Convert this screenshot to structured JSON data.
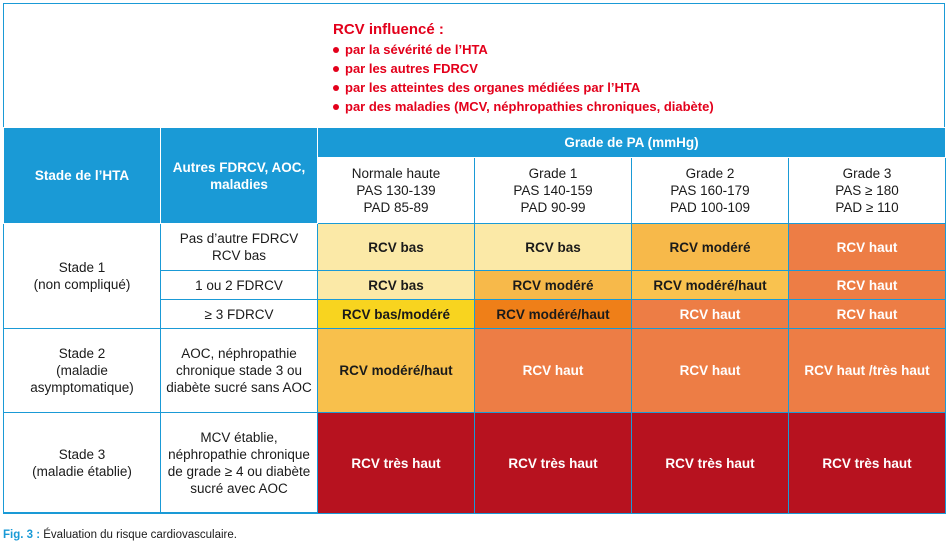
{
  "intro": {
    "title": "RCV influencé :",
    "bullets": [
      "par la sévérité de l’HTA",
      "par les autres FDRCV",
      "par les atteintes des organes médiées par l’HTA",
      "par des maladies (MCV, néphropathies chroniques, diabète)"
    ]
  },
  "table": {
    "header_stade": "Stade de l’HTA",
    "header_autres": "Autres FDRCV, AOC, maladies",
    "header_grade": "Grade de PA (mmHg)",
    "grades": [
      {
        "name": "Normale haute",
        "pas": "PAS 130-139",
        "pad": "PAD 85-89"
      },
      {
        "name": "Grade 1",
        "pas": "PAS 140-159",
        "pad": "PAD 90-99"
      },
      {
        "name": "Grade 2",
        "pas": "PAS 160-179",
        "pad": "PAD 100-109"
      },
      {
        "name": "Grade 3",
        "pas": "PAS ≥ 180",
        "pad": "PAD ≥ 110"
      }
    ],
    "stade1": {
      "label": "Stade 1",
      "sub": "(non compliqué)"
    },
    "stade2": {
      "label": "Stade 2",
      "sub": "(maladie asymptomatique)"
    },
    "stade3": {
      "label": "Stade 3",
      "sub": "(maladie établie)"
    },
    "rows": [
      {
        "factors": "Pas d’autre FDRCV RCV bas",
        "cells": [
          {
            "text": "RCV bas",
            "color": "#fbe9a7"
          },
          {
            "text": "RCV bas",
            "color": "#fbe9a7"
          },
          {
            "text": "RCV modéré",
            "color": "#f7b94a"
          },
          {
            "text": "RCV haut",
            "color": "#ed7d45",
            "white": true
          }
        ]
      },
      {
        "factors": "1 ou 2 FDRCV",
        "cells": [
          {
            "text": "RCV bas",
            "color": "#fbe9a7"
          },
          {
            "text": "RCV modéré",
            "color": "#f7b94a"
          },
          {
            "text": "RCV modéré/haut",
            "color": "#f9c24f"
          },
          {
            "text": "RCV haut",
            "color": "#ed7d45",
            "white": true
          }
        ]
      },
      {
        "factors": "≥ 3 FDRCV",
        "cells": [
          {
            "text": "RCV bas/modéré",
            "color": "#f8d41f"
          },
          {
            "text": "RCV modéré/haut",
            "color": "#ef7f18"
          },
          {
            "text": "RCV haut",
            "color": "#ed7d45",
            "white": true
          },
          {
            "text": "RCV haut",
            "color": "#ed7d45",
            "white": true
          }
        ]
      },
      {
        "factors": "AOC, néphropathie chronique stade 3 ou diabète sucré sans AOC",
        "cells": [
          {
            "text": "RCV modéré/haut",
            "color": "#f8c04c"
          },
          {
            "text": "RCV haut",
            "color": "#ed7d45",
            "white": true
          },
          {
            "text": "RCV haut",
            "color": "#ed7d45",
            "white": true
          },
          {
            "text": "RCV haut /très haut",
            "color": "#ed7d45",
            "white": true
          }
        ]
      },
      {
        "factors": "MCV établie, néphropathie chronique de grade ≥ 4 ou diabète sucré avec AOC",
        "cells": [
          {
            "text": "RCV très haut",
            "color": "#b7121f",
            "white": true
          },
          {
            "text": "RCV très haut",
            "color": "#b7121f",
            "white": true
          },
          {
            "text": "RCV très haut",
            "color": "#b7121f",
            "white": true
          },
          {
            "text": "RCV très haut",
            "color": "#b7121f",
            "white": true
          }
        ]
      }
    ]
  },
  "caption": {
    "label": "Fig. 3 :",
    "text": " Évaluation du risque cardiovasculaire."
  }
}
